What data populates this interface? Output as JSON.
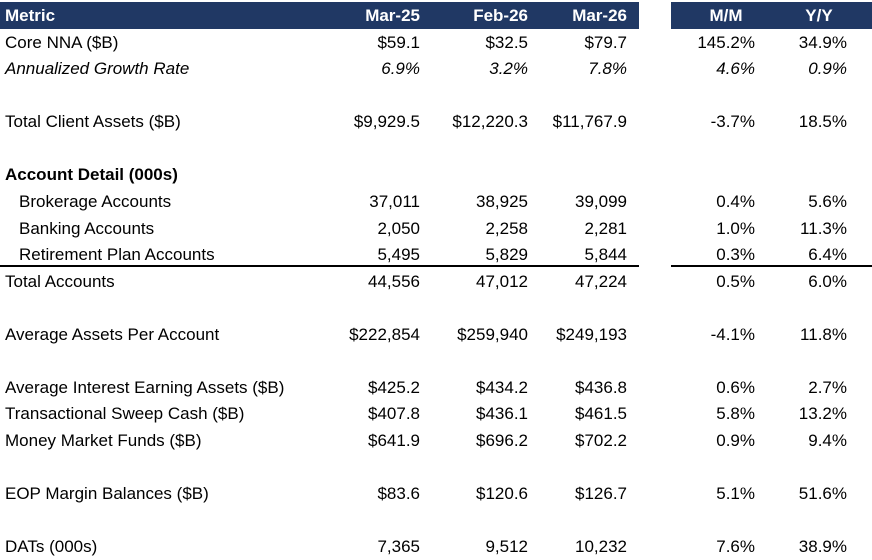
{
  "header": {
    "metric": "Metric",
    "col1": "Mar-25",
    "col2": "Feb-26",
    "col3": "Mar-26",
    "col4": "M/M",
    "col5": "Y/Y",
    "background": "#203864"
  },
  "rows": {
    "core_nna": {
      "label": "Core NNA ($B)",
      "v1": "$59.1",
      "v2": "$32.5",
      "v3": "$79.7",
      "mm": "145.2%",
      "yy": "34.9%"
    },
    "growth": {
      "label": "Annualized Growth Rate",
      "v1": "6.9%",
      "v2": "3.2%",
      "v3": "7.8%",
      "mm": "4.6%",
      "yy": "0.9%"
    },
    "tca": {
      "label": "Total Client Assets ($B)",
      "v1": "$9,929.5",
      "v2": "$12,220.3",
      "v3": "$11,767.9",
      "mm": "-3.7%",
      "yy": "18.5%"
    },
    "acct_detail": {
      "label": "Account Detail (000s)"
    },
    "brokerage": {
      "label": "Brokerage Accounts",
      "v1": "37,011",
      "v2": "38,925",
      "v3": "39,099",
      "mm": "0.4%",
      "yy": "5.6%"
    },
    "banking": {
      "label": "Banking Accounts",
      "v1": "2,050",
      "v2": "2,258",
      "v3": "2,281",
      "mm": "1.0%",
      "yy": "11.3%"
    },
    "retirement": {
      "label": "Retirement Plan Accounts",
      "v1": "5,495",
      "v2": "5,829",
      "v3": "5,844",
      "mm": "0.3%",
      "yy": "6.4%"
    },
    "total_accounts": {
      "label": "Total Accounts",
      "v1": "44,556",
      "v2": "47,012",
      "v3": "47,224",
      "mm": "0.5%",
      "yy": "6.0%"
    },
    "avg_assets": {
      "label": "Average Assets Per Account",
      "v1": "$222,854",
      "v2": "$259,940",
      "v3": "$249,193",
      "mm": "-4.1%",
      "yy": "11.8%"
    },
    "aiea": {
      "label": "Average Interest Earning Assets ($B)",
      "v1": "$425.2",
      "v2": "$434.2",
      "v3": "$436.8",
      "mm": "0.6%",
      "yy": "2.7%"
    },
    "sweep": {
      "label": "Transactional Sweep Cash ($B)",
      "v1": "$407.8",
      "v2": "$436.1",
      "v3": "$461.5",
      "mm": "5.8%",
      "yy": "13.2%"
    },
    "mmf": {
      "label": "Money Market Funds ($B)",
      "v1": "$641.9",
      "v2": "$696.2",
      "v3": "$702.2",
      "mm": "0.9%",
      "yy": "9.4%"
    },
    "margin": {
      "label": "EOP Margin Balances ($B)",
      "v1": "$83.6",
      "v2": "$120.6",
      "v3": "$126.7",
      "mm": "5.1%",
      "yy": "51.6%"
    },
    "dats": {
      "label": "DATs (000s)",
      "v1": "7,365",
      "v2": "9,512",
      "v3": "10,232",
      "mm": "7.6%",
      "yy": "38.9%"
    }
  }
}
